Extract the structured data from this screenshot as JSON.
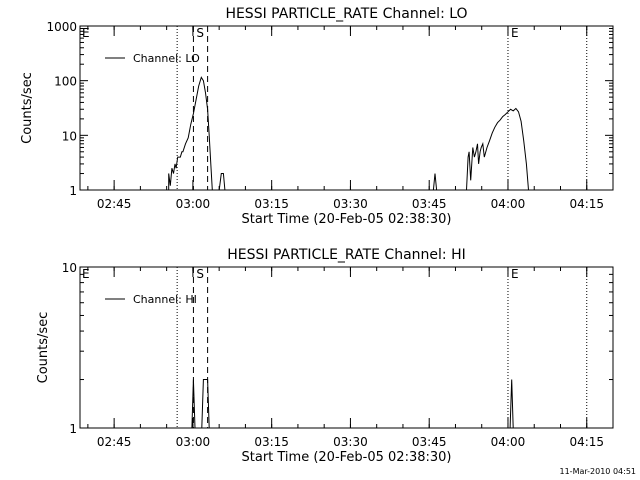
{
  "footer_timestamp": "11-Mar-2010 04:51",
  "chart_data": [
    {
      "type": "line",
      "title": "HESSI PARTICLE_RATE Channel: LO",
      "xlabel": "Start Time (20-Feb-05 02:38:30)",
      "ylabel": "Counts/sec",
      "y_scale": "log",
      "ylim": [
        1,
        1000
      ],
      "y_ticks": [
        "1",
        "10",
        "100",
        "1000"
      ],
      "x_unit": "minutes since 02:38:30",
      "xlim": [
        0,
        101.5
      ],
      "x_ticks": [
        {
          "label": "02:45",
          "x": 6.5
        },
        {
          "label": "03:00",
          "x": 21.5
        },
        {
          "label": "03:15",
          "x": 36.5
        },
        {
          "label": "03:30",
          "x": 51.5
        },
        {
          "label": "03:45",
          "x": 66.5
        },
        {
          "label": "04:00",
          "x": 81.5
        },
        {
          "label": "04:15",
          "x": 96.5
        }
      ],
      "legend": {
        "label": "Channel: LO",
        "position": "top-left"
      },
      "markers": [
        {
          "label": "E",
          "x": 0,
          "style": "dotted"
        },
        {
          "label": "",
          "x": 18.5,
          "style": "dotted"
        },
        {
          "label": "S",
          "x": 21.6,
          "style": "dashed"
        },
        {
          "label": "",
          "x": 24.3,
          "style": "dashed"
        },
        {
          "label": "E",
          "x": 81.5,
          "style": "dotted"
        },
        {
          "label": "",
          "x": 96.5,
          "style": "dotted"
        }
      ],
      "series": [
        {
          "name": "Channel: LO",
          "segments": [
            [
              [
                16.9,
                1
              ],
              [
                16.9,
                2
              ],
              [
                17.2,
                1.2
              ],
              [
                17.5,
                2.5
              ],
              [
                17.8,
                2
              ],
              [
                18.1,
                3
              ],
              [
                18.3,
                2.5
              ],
              [
                18.6,
                4
              ],
              [
                19.1,
                4
              ],
              [
                19.4,
                5
              ],
              [
                19.6,
                5
              ],
              [
                20.1,
                7
              ],
              [
                20.6,
                9
              ],
              [
                21.1,
                16
              ],
              [
                21.6,
                25
              ],
              [
                22.1,
                45
              ],
              [
                22.6,
                80
              ],
              [
                23.1,
                115
              ],
              [
                23.5,
                100
              ],
              [
                23.9,
                60
              ],
              [
                24.3,
                30
              ],
              [
                24.6,
                10
              ],
              [
                24.9,
                3
              ],
              [
                25.2,
                1
              ]
            ],
            [
              [
                26.5,
                1
              ],
              [
                26.9,
                2
              ],
              [
                27.3,
                2
              ],
              [
                27.6,
                1
              ]
            ],
            [
              [
                67.3,
                1
              ],
              [
                67.6,
                2
              ],
              [
                67.9,
                1
              ]
            ],
            [
              [
                73.6,
                1
              ],
              [
                73.9,
                4
              ],
              [
                74.1,
                5
              ],
              [
                74.4,
                1.5
              ],
              [
                74.8,
                6
              ],
              [
                75.1,
                4
              ],
              [
                75.4,
                5
              ],
              [
                75.7,
                7
              ],
              [
                75.9,
                3
              ],
              [
                76.2,
                5
              ],
              [
                76.4,
                6
              ],
              [
                76.7,
                7
              ],
              [
                77.0,
                4
              ],
              [
                77.5,
                6
              ],
              [
                78.0,
                8
              ],
              [
                78.5,
                11
              ],
              [
                79.0,
                14
              ],
              [
                79.5,
                17
              ],
              [
                80.0,
                19
              ],
              [
                80.5,
                22
              ],
              [
                81.0,
                24
              ],
              [
                81.5,
                27
              ],
              [
                82.0,
                30
              ],
              [
                82.5,
                28
              ],
              [
                83.0,
                31
              ],
              [
                83.5,
                27
              ],
              [
                84.0,
                18
              ],
              [
                84.5,
                8
              ],
              [
                85.0,
                3
              ],
              [
                85.4,
                1
              ]
            ]
          ]
        }
      ]
    },
    {
      "type": "line",
      "title": "HESSI PARTICLE_RATE Channel: HI",
      "xlabel": "Start Time (20-Feb-05 02:38:30)",
      "ylabel": "Counts/sec",
      "y_scale": "log",
      "ylim": [
        1,
        10
      ],
      "y_ticks": [
        "1",
        "10"
      ],
      "x_unit": "minutes since 02:38:30",
      "xlim": [
        0,
        101.5
      ],
      "x_ticks": [
        {
          "label": "02:45",
          "x": 6.5
        },
        {
          "label": "03:00",
          "x": 21.5
        },
        {
          "label": "03:15",
          "x": 36.5
        },
        {
          "label": "03:30",
          "x": 51.5
        },
        {
          "label": "03:45",
          "x": 66.5
        },
        {
          "label": "04:00",
          "x": 81.5
        },
        {
          "label": "04:15",
          "x": 96.5
        }
      ],
      "legend": {
        "label": "Channel: HI",
        "position": "top-left"
      },
      "markers": [
        {
          "label": "E",
          "x": 0,
          "style": "dotted"
        },
        {
          "label": "",
          "x": 18.5,
          "style": "dotted"
        },
        {
          "label": "S",
          "x": 21.6,
          "style": "dashed"
        },
        {
          "label": "",
          "x": 24.3,
          "style": "dashed"
        },
        {
          "label": "E",
          "x": 81.5,
          "style": "dotted"
        },
        {
          "label": "",
          "x": 96.5,
          "style": "dotted"
        }
      ],
      "series": [
        {
          "name": "Channel: HI",
          "segments": [
            [
              [
                21.3,
                1
              ],
              [
                21.6,
                2
              ],
              [
                21.9,
                1
              ]
            ],
            [
              [
                23.2,
                1
              ],
              [
                23.5,
                2
              ],
              [
                24.3,
                2
              ],
              [
                24.6,
                1
              ]
            ],
            [
              [
                81.9,
                1
              ],
              [
                82.2,
                2
              ],
              [
                82.5,
                1
              ]
            ]
          ]
        }
      ]
    }
  ]
}
